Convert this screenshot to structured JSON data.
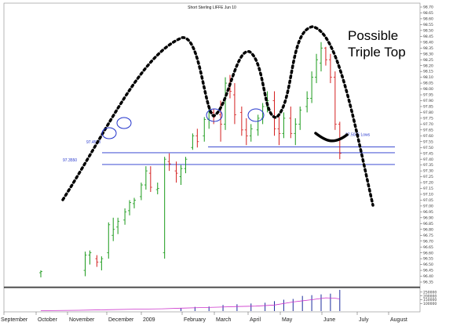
{
  "chart_data": {
    "type": "bar",
    "title": "Short Sterling LIFFE Jun 10",
    "ylim": [
      96.35,
      98.7
    ],
    "y_ticks": [
      "98.70",
      "98.65",
      "98.60",
      "98.55",
      "98.50",
      "98.45",
      "98.40",
      "98.35",
      "98.30",
      "98.25",
      "98.20",
      "98.15",
      "98.10",
      "98.05",
      "98.00",
      "97.95",
      "97.90",
      "97.85",
      "97.80",
      "97.75",
      "97.70",
      "97.65",
      "97.60",
      "97.55",
      "97.50",
      "97.45",
      "97.40",
      "97.35",
      "97.30",
      "97.25",
      "97.20",
      "97.15",
      "97.10",
      "97.05",
      "97.00",
      "96.95",
      "96.90",
      "96.85",
      "96.80",
      "96.75",
      "96.70",
      "96.65",
      "96.60",
      "96.55",
      "96.50",
      "96.45",
      "96.40",
      "96.35"
    ],
    "volume_ticks": [
      "250000",
      "200000",
      "150000",
      "100000"
    ],
    "x_months": [
      "September",
      "October",
      "November",
      "December",
      "2009",
      "February",
      "March",
      "April",
      "May",
      "June",
      "July",
      "August"
    ],
    "levels": [
      {
        "label": "97.4550",
        "value": 97.455
      },
      {
        "label": "97.3550",
        "value": 97.355
      },
      {
        "label": "97.5045 Lows",
        "value": 97.505
      }
    ],
    "annotation": "Possible\nTriple Top",
    "price_bars": [
      {
        "t": 0,
        "o": 96.43,
        "h": 96.45,
        "l": 96.39,
        "c": 96.44
      },
      {
        "t": 9.5,
        "o": 96.45,
        "h": 96.61,
        "l": 96.4,
        "c": 96.58
      },
      {
        "t": 10.5,
        "o": 96.58,
        "h": 96.62,
        "l": 96.5,
        "c": 96.6
      },
      {
        "t": 12,
        "o": 96.55,
        "h": 96.58,
        "l": 96.48,
        "c": 96.52
      },
      {
        "t": 13,
        "o": 96.52,
        "h": 96.57,
        "l": 96.45,
        "c": 96.55
      },
      {
        "t": 14.5,
        "o": 96.6,
        "h": 96.86,
        "l": 96.55,
        "c": 96.84
      },
      {
        "t": 15.5,
        "o": 96.75,
        "h": 96.9,
        "l": 96.7,
        "c": 96.8
      },
      {
        "t": 16.5,
        "o": 96.82,
        "h": 96.9,
        "l": 96.76,
        "c": 96.87
      },
      {
        "t": 18,
        "o": 96.88,
        "h": 96.98,
        "l": 96.84,
        "c": 96.95
      },
      {
        "t": 19,
        "o": 96.96,
        "h": 97.05,
        "l": 96.92,
        "c": 97.03
      },
      {
        "t": 20,
        "o": 97.02,
        "h": 97.07,
        "l": 96.98,
        "c": 97.05
      },
      {
        "t": 21.5,
        "o": 97.08,
        "h": 97.2,
        "l": 97.05,
        "c": 97.18
      },
      {
        "t": 22.5,
        "o": 97.18,
        "h": 97.34,
        "l": 97.14,
        "c": 97.3
      },
      {
        "t": 23.5,
        "o": 97.28,
        "h": 97.34,
        "l": 97.12,
        "c": 97.16
      },
      {
        "t": 25,
        "o": 97.14,
        "h": 97.2,
        "l": 97.1,
        "c": 97.15
      },
      {
        "t": 26.5,
        "o": 96.6,
        "h": 97.42,
        "l": 96.55,
        "c": 97.4
      },
      {
        "t": 27.5,
        "o": 97.38,
        "h": 97.45,
        "l": 97.3,
        "c": 97.36
      },
      {
        "t": 29,
        "o": 97.3,
        "h": 97.38,
        "l": 97.2,
        "c": 97.28
      },
      {
        "t": 30,
        "o": 97.25,
        "h": 97.35,
        "l": 97.18,
        "c": 97.32
      },
      {
        "t": 31,
        "o": 97.32,
        "h": 97.42,
        "l": 97.28,
        "c": 97.4
      },
      {
        "t": 32.5,
        "o": 97.5,
        "h": 97.62,
        "l": 97.48,
        "c": 97.6
      },
      {
        "t": 33.5,
        "o": 97.6,
        "h": 97.66,
        "l": 97.5,
        "c": 97.55
      },
      {
        "t": 35,
        "o": 97.6,
        "h": 97.76,
        "l": 97.55,
        "c": 97.74
      },
      {
        "t": 36,
        "o": 97.74,
        "h": 97.83,
        "l": 97.66,
        "c": 97.8
      },
      {
        "t": 37,
        "o": 97.8,
        "h": 97.83,
        "l": 97.7,
        "c": 97.76
      },
      {
        "t": 38.5,
        "o": 97.78,
        "h": 97.9,
        "l": 97.55,
        "c": 97.7
      },
      {
        "t": 39.5,
        "o": 97.7,
        "h": 98.1,
        "l": 97.65,
        "c": 98.05
      },
      {
        "t": 40.5,
        "o": 98.05,
        "h": 98.12,
        "l": 97.92,
        "c": 97.98
      },
      {
        "t": 41.5,
        "o": 97.95,
        "h": 98.05,
        "l": 97.7,
        "c": 97.78
      },
      {
        "t": 43,
        "o": 97.8,
        "h": 97.85,
        "l": 97.6,
        "c": 97.65
      },
      {
        "t": 44,
        "o": 97.65,
        "h": 97.75,
        "l": 97.52,
        "c": 97.6
      },
      {
        "t": 45,
        "o": 97.6,
        "h": 97.7,
        "l": 97.55,
        "c": 97.66
      },
      {
        "t": 46.5,
        "o": 97.65,
        "h": 97.78,
        "l": 97.6,
        "c": 97.75
      },
      {
        "t": 47.5,
        "o": 97.75,
        "h": 97.88,
        "l": 97.7,
        "c": 97.85
      },
      {
        "t": 48.5,
        "o": 97.85,
        "h": 97.98,
        "l": 97.8,
        "c": 97.9
      },
      {
        "t": 50,
        "o": 97.9,
        "h": 97.98,
        "l": 97.6,
        "c": 97.66
      },
      {
        "t": 51,
        "o": 97.66,
        "h": 97.76,
        "l": 97.52,
        "c": 97.62
      },
      {
        "t": 52,
        "o": 97.62,
        "h": 97.8,
        "l": 97.58,
        "c": 97.75
      },
      {
        "t": 53.5,
        "o": 97.75,
        "h": 97.85,
        "l": 97.58,
        "c": 97.62
      },
      {
        "t": 54.5,
        "o": 97.62,
        "h": 97.75,
        "l": 97.52,
        "c": 97.7
      },
      {
        "t": 55.5,
        "o": 97.7,
        "h": 97.85,
        "l": 97.65,
        "c": 97.82
      },
      {
        "t": 57,
        "o": 97.85,
        "h": 97.98,
        "l": 97.8,
        "c": 97.92
      },
      {
        "t": 58,
        "o": 97.92,
        "h": 98.15,
        "l": 97.88,
        "c": 98.1
      },
      {
        "t": 59,
        "o": 98.1,
        "h": 98.3,
        "l": 98.05,
        "c": 98.25
      },
      {
        "t": 60,
        "o": 98.22,
        "h": 98.4,
        "l": 98.15,
        "c": 98.35
      },
      {
        "t": 61,
        "o": 98.35,
        "h": 98.36,
        "l": 98.2,
        "c": 98.25
      },
      {
        "t": 62,
        "o": 98.25,
        "h": 98.3,
        "l": 98.05,
        "c": 98.1
      },
      {
        "t": 63,
        "o": 98.1,
        "h": 98.15,
        "l": 97.65,
        "c": 97.7
      },
      {
        "t": 64,
        "o": 97.7,
        "h": 97.72,
        "l": 97.4,
        "c": 97.45
      }
    ],
    "volume": [
      {
        "t": 30,
        "v": 40000
      },
      {
        "t": 33,
        "v": 55000
      },
      {
        "t": 36,
        "v": 60000
      },
      {
        "t": 39,
        "v": 80000
      },
      {
        "t": 42,
        "v": 90000
      },
      {
        "t": 45,
        "v": 100000
      },
      {
        "t": 48,
        "v": 110000
      },
      {
        "t": 50,
        "v": 130000
      },
      {
        "t": 52,
        "v": 150000
      },
      {
        "t": 54,
        "v": 160000
      },
      {
        "t": 56,
        "v": 200000
      },
      {
        "t": 58,
        "v": 210000
      },
      {
        "t": 60,
        "v": 220000
      },
      {
        "t": 62,
        "v": 230000
      },
      {
        "t": 64,
        "v": 280000
      }
    ],
    "open_interest": [
      [
        0,
        5000
      ],
      [
        8,
        10000
      ],
      [
        14,
        18000
      ],
      [
        20,
        25000
      ],
      [
        26,
        30000
      ],
      [
        30,
        38000
      ],
      [
        34,
        45000
      ],
      [
        38,
        52000
      ],
      [
        42,
        60000
      ],
      [
        46,
        65000
      ],
      [
        50,
        80000
      ],
      [
        54,
        120000
      ],
      [
        58,
        150000
      ],
      [
        61,
        175000
      ],
      [
        63,
        170000
      ],
      [
        64,
        160000
      ]
    ],
    "colors": {
      "up": "#1a9a1a",
      "down": "#d42020",
      "level": "#2233cc",
      "volume": "#1c2c9c",
      "oi": "#cc33cc"
    }
  }
}
